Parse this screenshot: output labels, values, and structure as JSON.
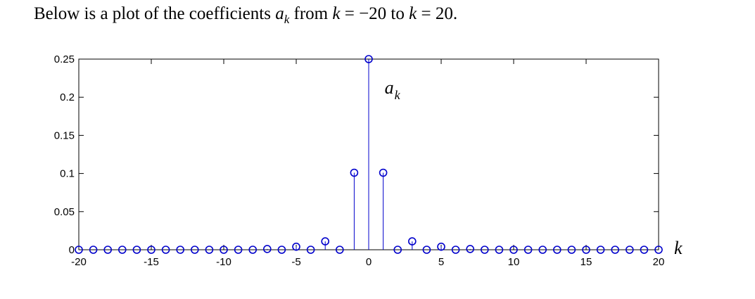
{
  "caption": {
    "prefix": "Below is a plot of the coefficients ",
    "symbol": "a",
    "subscript": "k",
    "middle1": " from ",
    "k_symbol_1": "k",
    "eq1": " = −20 to ",
    "k_symbol_2": "k",
    "eq2": " = 20."
  },
  "chart_data": {
    "type": "scatter",
    "style": "stem",
    "marker": "circle",
    "color": "#0000cc",
    "x": [
      -20,
      -19,
      -18,
      -17,
      -16,
      -15,
      -14,
      -13,
      -12,
      -11,
      -10,
      -9,
      -8,
      -7,
      -6,
      -5,
      -4,
      -3,
      -2,
      -1,
      0,
      1,
      2,
      3,
      4,
      5,
      6,
      7,
      8,
      9,
      10,
      11,
      12,
      13,
      14,
      15,
      16,
      17,
      18,
      19,
      20
    ],
    "y": [
      0,
      0,
      0,
      0,
      0,
      0,
      0,
      0,
      0,
      0,
      0,
      0,
      0,
      0.001,
      0,
      0.004,
      0,
      0.011,
      0,
      0.101,
      0.25,
      0.101,
      0,
      0.011,
      0,
      0.004,
      0,
      0.001,
      0,
      0,
      0,
      0,
      0,
      0,
      0,
      0,
      0,
      0,
      0,
      0,
      0
    ],
    "xlim": [
      -20,
      20
    ],
    "ylim": [
      0,
      0.25
    ],
    "xticks": [
      -20,
      -15,
      -10,
      -5,
      0,
      5,
      10,
      15,
      20
    ],
    "yticks": [
      0,
      0.05,
      0.1,
      0.15,
      0.2,
      0.25
    ],
    "xtick_labels": [
      "-20",
      "-15",
      "-10",
      "-5",
      "0",
      "5",
      "10",
      "15",
      "20"
    ],
    "ytick_labels": [
      "0",
      "0.05",
      "0.1",
      "0.15",
      "0.2",
      "0.25"
    ],
    "xlabel": "k",
    "series_label": {
      "symbol": "a",
      "subscript": "k"
    },
    "grid": false
  }
}
